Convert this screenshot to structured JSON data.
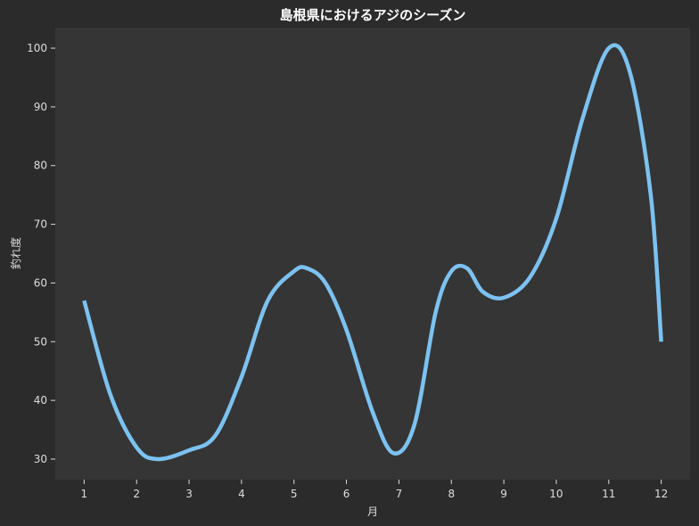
{
  "chart_data": {
    "type": "line",
    "title": "島根県におけるアジのシーズン",
    "xlabel": "月",
    "ylabel": "釣れ度",
    "x": [
      1,
      2,
      3,
      4,
      5,
      6,
      7,
      8,
      9,
      10,
      11,
      12
    ],
    "xlim": [
      0.45,
      12.55
    ],
    "ylim": [
      26.5,
      103.5
    ],
    "yticks": [
      30,
      40,
      50,
      60,
      70,
      80,
      90,
      100
    ],
    "grid": false,
    "legend": "none",
    "series": [
      {
        "curve_x": [
          1,
          1.5,
          2,
          2.4,
          3,
          3.5,
          4,
          4.5,
          5,
          5.25,
          5.6,
          6,
          6.5,
          6.9,
          7.3,
          7.7,
          8,
          8.3,
          8.6,
          9,
          9.5,
          10,
          10.5,
          11,
          11.4,
          11.8,
          12
        ],
        "curve_y": [
          57,
          41,
          32,
          30,
          31.5,
          34,
          44,
          57,
          62,
          62.5,
          60,
          52,
          38,
          31,
          36,
          55,
          62,
          62.5,
          58.5,
          57.5,
          61,
          71,
          88,
          100,
          96,
          75,
          50
        ],
        "color": "#7cc2f0"
      }
    ],
    "colors": {
      "background": "#2b2b2b",
      "plot_background": "#353535",
      "line": "#7cc2f0",
      "text": "#dddddd",
      "title": "#ffffff"
    }
  }
}
